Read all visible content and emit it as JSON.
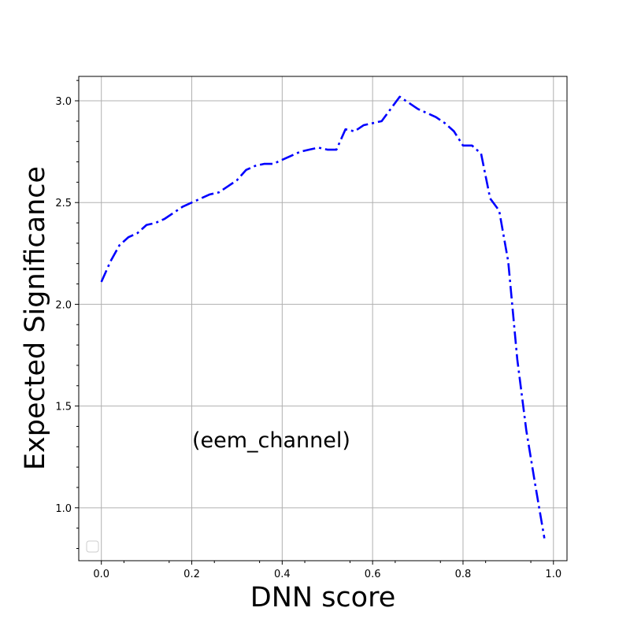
{
  "chart_data": {
    "type": "line",
    "xlabel": "DNN score",
    "ylabel": "Expected Significance",
    "annotation": "(eem_channel)",
    "xlim": [
      -0.05,
      1.03
    ],
    "ylim": [
      0.74,
      3.12
    ],
    "xticks": [
      0.0,
      0.2,
      0.4,
      0.6,
      0.8,
      1.0
    ],
    "xtick_labels": [
      "0.0",
      "0.2",
      "0.4",
      "0.6",
      "0.8",
      "1.0"
    ],
    "yticks": [
      1.0,
      1.5,
      2.0,
      2.5,
      3.0
    ],
    "ytick_labels": [
      "1.0",
      "1.5",
      "2.0",
      "2.5",
      "3.0"
    ],
    "grid": true,
    "legend": "lower-left (empty)",
    "series": [
      {
        "color": "#0000ff",
        "linestyle": "dashdot",
        "x": [
          0.0,
          0.02,
          0.04,
          0.06,
          0.08,
          0.1,
          0.12,
          0.14,
          0.16,
          0.18,
          0.2,
          0.22,
          0.24,
          0.26,
          0.28,
          0.3,
          0.32,
          0.34,
          0.36,
          0.38,
          0.4,
          0.42,
          0.44,
          0.46,
          0.48,
          0.5,
          0.52,
          0.54,
          0.56,
          0.58,
          0.6,
          0.62,
          0.64,
          0.66,
          0.68,
          0.7,
          0.72,
          0.74,
          0.76,
          0.78,
          0.8,
          0.82,
          0.84,
          0.86,
          0.88,
          0.9,
          0.92,
          0.94,
          0.96,
          0.98
        ],
        "y": [
          2.11,
          2.21,
          2.29,
          2.33,
          2.35,
          2.39,
          2.4,
          2.42,
          2.45,
          2.48,
          2.5,
          2.52,
          2.54,
          2.55,
          2.58,
          2.61,
          2.66,
          2.68,
          2.69,
          2.69,
          2.71,
          2.73,
          2.75,
          2.76,
          2.77,
          2.76,
          2.76,
          2.86,
          2.85,
          2.88,
          2.89,
          2.9,
          2.96,
          3.02,
          2.99,
          2.96,
          2.94,
          2.92,
          2.89,
          2.85,
          2.78,
          2.78,
          2.74,
          2.52,
          2.46,
          2.21,
          1.73,
          1.38,
          1.11,
          0.85
        ]
      }
    ]
  }
}
